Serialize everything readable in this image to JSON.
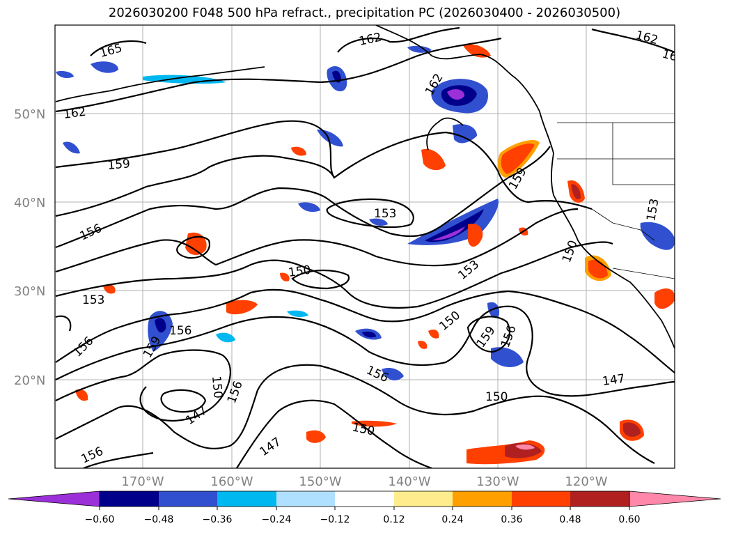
{
  "title": "2026030200 F048 500 hPa refract., precipitation PC (2026030400 - 2026030500)",
  "lat_labels": [
    "50°N",
    "40°N",
    "30°N",
    "20°N"
  ],
  "lon_labels": [
    "170°W",
    "160°W",
    "150°W",
    "140°W",
    "130°W",
    "120°W"
  ],
  "contour_labels": [
    "165",
    "162",
    "162",
    "162",
    "162",
    "16",
    "159",
    "159",
    "156",
    "153",
    "153",
    "153",
    "150",
    "150",
    "150",
    "150",
    "150",
    "159",
    "156",
    "156",
    "159",
    "156",
    "150",
    "147",
    "147",
    "147",
    "156",
    "156",
    "156",
    "153"
  ],
  "colorbar": {
    "ticks": [
      "−0.60",
      "−0.48",
      "−0.36",
      "−0.24",
      "−0.12",
      "0.12",
      "0.24",
      "0.36",
      "0.48",
      "0.60"
    ],
    "colors": [
      "#9b30d8",
      "#00008b",
      "#3050d0",
      "#00b8f0",
      "#b0e0ff",
      "#ffffff",
      "#ffec8c",
      "#ffa000",
      "#ff4000",
      "#b02020",
      "#ff88aa"
    ]
  },
  "fill_colors": {
    "violet": "#9b30d8",
    "navy": "#00008b",
    "blue": "#3050d0",
    "cyan": "#00b8f0",
    "lightblue": "#b0e0ff",
    "yellow": "#ffec8c",
    "orange": "#ffa000",
    "redorange": "#ff4000",
    "darkred": "#b02020",
    "pink": "#ff88aa"
  }
}
